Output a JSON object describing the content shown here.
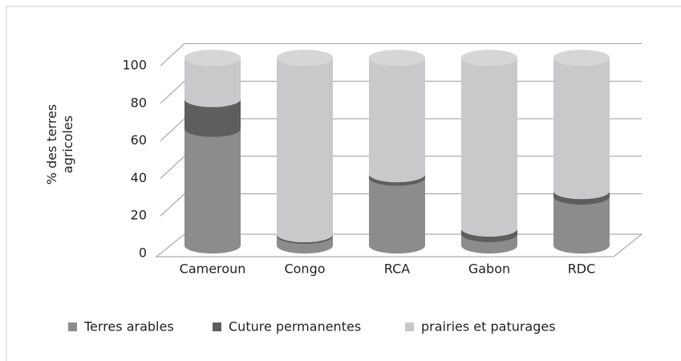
{
  "chart_data": {
    "type": "bar3d_stacked",
    "ylabel": "% des terres agricoles",
    "categories": [
      "Cameroun",
      "Congo",
      "RCA",
      "Gabon",
      "RDC"
    ],
    "series": [
      {
        "name": "Terres arables",
        "color": "#8c8c8c",
        "values": [
          62,
          5,
          36,
          6,
          26
        ]
      },
      {
        "name": "Cuture permanentes",
        "color": "#5e5e5e",
        "values": [
          16,
          1,
          2,
          3,
          3
        ]
      },
      {
        "name": "prairies et paturages",
        "color": "#c9c9cb",
        "values": [
          22,
          94,
          62,
          91,
          71
        ]
      }
    ],
    "ylim": [
      0,
      100
    ],
    "yticks": [
      0,
      20,
      40,
      60,
      80,
      100
    ],
    "grid": true,
    "legend": "bottom"
  }
}
